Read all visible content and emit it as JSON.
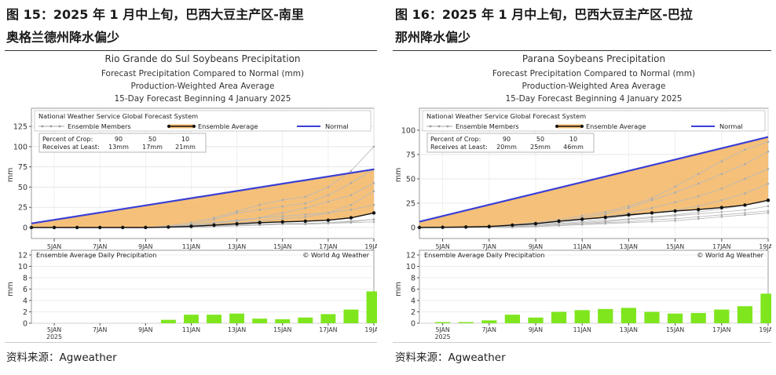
{
  "figures": [
    {
      "caption_line1": "图 15：2025 年 1 月中上旬，巴西大豆主产区-南里",
      "caption_line2": "奥格兰德州降水偏少",
      "source": "资料来源：Agweather"
    },
    {
      "caption_line1": "图 16：2025 年 1 月中上旬，巴西大豆主产区-巴拉",
      "caption_line2": "那州降水偏少",
      "source": "资料来源：Agweather"
    }
  ],
  "colors": {
    "normal": "#3a3fd6",
    "fill": "#f4b96a",
    "ensemble_average": "#111111",
    "ensemble_members": "#bbbbbb",
    "daily_bar": "#7fe61e",
    "panel_border": "#777777"
  },
  "chart_data": [
    {
      "type": "line",
      "title": "Rio Grande do Sul Soybeans Precipitation",
      "subtitle_lines": [
        "Forecast Precipitation Compared to Normal (mm)",
        "Production-Weighted Area Average",
        "15-Day Forecast Beginning 4 January 2025"
      ],
      "system_label": "National Weather Service Global Forecast System",
      "legend": {
        "members": "Ensemble Members",
        "average": "Ensemble Average",
        "normal": "Normal"
      },
      "crop_table": {
        "row1_label": "Percent of Crop:",
        "row2_label": "Receives at Least:",
        "percents": [
          "90",
          "50",
          "10"
        ],
        "amounts": [
          "13mm",
          "17mm",
          "21mm"
        ]
      },
      "ylabel": "mm",
      "top_yticks": [
        "0",
        "25",
        "50",
        "75",
        "100",
        "125"
      ],
      "top_ylim": [
        0,
        130
      ],
      "x_days": [
        4,
        5,
        6,
        7,
        8,
        9,
        10,
        11,
        12,
        13,
        14,
        15,
        16,
        17,
        18,
        19
      ],
      "x_tick_labels": [
        "5JAN",
        "7JAN",
        "9JAN",
        "11JAN",
        "13JAN",
        "15JAN",
        "17JAN",
        "19JAN"
      ],
      "x_tick_days": [
        5,
        7,
        9,
        11,
        13,
        15,
        17,
        19
      ],
      "x_year_label": "2025",
      "normal_range": [
        5,
        72
      ],
      "ensemble_average": [
        0,
        0,
        0,
        0,
        0,
        0,
        0.5,
        1.5,
        3,
        4.5,
        6,
        7,
        7.8,
        9,
        12,
        18
      ],
      "ensemble_members": [
        [
          0,
          0,
          0,
          0,
          0,
          0,
          0,
          1,
          2,
          3,
          4,
          5,
          5,
          6,
          7,
          10
        ],
        [
          0,
          0,
          0,
          0,
          0,
          0,
          1,
          3,
          6,
          9,
          12,
          14,
          16,
          18,
          22,
          28
        ],
        [
          0,
          0,
          0,
          0,
          0,
          0,
          0,
          1,
          2,
          3,
          3,
          4,
          4,
          5,
          6,
          7
        ],
        [
          0,
          0,
          0,
          0,
          0,
          0,
          2,
          6,
          12,
          20,
          28,
          34,
          38,
          50,
          70,
          100
        ],
        [
          0,
          0,
          0,
          0,
          0,
          0,
          1,
          4,
          10,
          18,
          22,
          26,
          30,
          40,
          55,
          72
        ],
        [
          0,
          0,
          0,
          0,
          0,
          0,
          0,
          2,
          5,
          8,
          12,
          18,
          24,
          32,
          40,
          55
        ],
        [
          0,
          0,
          0,
          0,
          0,
          0,
          0,
          1,
          3,
          5,
          8,
          11,
          13,
          18,
          28,
          45
        ],
        [
          0,
          0,
          0,
          0,
          0,
          0,
          0,
          0,
          1,
          2,
          3,
          4,
          5,
          6,
          8,
          10
        ]
      ],
      "bottom_title": "Ensemble Average Daily Precipitation",
      "credit": "© World Ag Weather",
      "bottom_yticks": [
        "0",
        "2",
        "4",
        "6",
        "8",
        "10",
        "12"
      ],
      "bottom_ylim": [
        0,
        12
      ],
      "daily_days": [
        10,
        11,
        12,
        13,
        14,
        15,
        16,
        17,
        18,
        19
      ],
      "daily_values": [
        0.6,
        1.5,
        1.5,
        1.7,
        0.8,
        0.7,
        1.0,
        1.6,
        2.4,
        5.6
      ]
    },
    {
      "type": "line",
      "title": "Parana Soybeans Precipitation",
      "subtitle_lines": [
        "Forecast Precipitation Compared to Normal (mm)",
        "Production-Weighted Area Average",
        "15-Day Forecast Beginning 4 January 2025"
      ],
      "system_label": "National Weather Service Global Forecast System",
      "legend": {
        "members": "Ensemble Members",
        "average": "Ensemble Average",
        "normal": "Normal"
      },
      "crop_table": {
        "row1_label": "Percent of Crop:",
        "row2_label": "Receives at Least:",
        "percents": [
          "90",
          "50",
          "10"
        ],
        "amounts": [
          "20mm",
          "25mm",
          "46mm"
        ]
      },
      "ylabel": "mm",
      "top_yticks": [
        "0",
        "25",
        "50",
        "75",
        "100"
      ],
      "top_ylim": [
        0,
        108
      ],
      "x_days": [
        4,
        5,
        6,
        7,
        8,
        9,
        10,
        11,
        12,
        13,
        14,
        15,
        16,
        17,
        18,
        19
      ],
      "x_tick_labels": [
        "5JAN",
        "7JAN",
        "9JAN",
        "11JAN",
        "13JAN",
        "15JAN",
        "17JAN",
        "19JAN"
      ],
      "x_tick_days": [
        5,
        7,
        9,
        11,
        13,
        15,
        17,
        19
      ],
      "x_year_label": "2025",
      "normal_range": [
        6,
        93
      ],
      "ensemble_average": [
        0,
        0.2,
        0.5,
        1,
        2.5,
        4,
        6.5,
        8.5,
        10.5,
        13,
        15,
        17,
        18.5,
        20.5,
        23,
        28
      ],
      "ensemble_members": [
        [
          0,
          0,
          0,
          1,
          3,
          5,
          8,
          12,
          16,
          22,
          30,
          42,
          55,
          68,
          80,
          88
        ],
        [
          0,
          0,
          0,
          1,
          2,
          4,
          6,
          10,
          14,
          20,
          28,
          36,
          45,
          55,
          65,
          78
        ],
        [
          0,
          0,
          0,
          1,
          2,
          3,
          5,
          8,
          11,
          15,
          20,
          26,
          32,
          40,
          50,
          60
        ],
        [
          0,
          0,
          0,
          0,
          1,
          2,
          4,
          6,
          9,
          12,
          15,
          18,
          22,
          28,
          35,
          45
        ],
        [
          0,
          0,
          0,
          0,
          1,
          2,
          3,
          5,
          7,
          9,
          11,
          13,
          16,
          19,
          23,
          28
        ],
        [
          0,
          0,
          0,
          0,
          1,
          2,
          3,
          4,
          6,
          8,
          10,
          12,
          14,
          16,
          18,
          22
        ],
        [
          0,
          0,
          0,
          0,
          1,
          1,
          2,
          3,
          5,
          6,
          8,
          9,
          11,
          13,
          15,
          17
        ],
        [
          0,
          0,
          0,
          0,
          0,
          1,
          2,
          3,
          4,
          5,
          6,
          7,
          9,
          11,
          13,
          15
        ]
      ],
      "bottom_title": "Ensemble Average Daily Precipitation",
      "credit": "© World Ag Weather",
      "bottom_yticks": [
        "0",
        "2",
        "4",
        "6",
        "8",
        "10",
        "12"
      ],
      "bottom_ylim": [
        0,
        12
      ],
      "daily_days": [
        5,
        6,
        7,
        8,
        9,
        10,
        11,
        12,
        13,
        14,
        15,
        16,
        17,
        18,
        19
      ],
      "daily_values": [
        0.2,
        0.2,
        0.5,
        1.5,
        1.0,
        2.0,
        2.3,
        2.5,
        2.7,
        2.0,
        1.7,
        1.8,
        2.4,
        3.0,
        5.2
      ]
    }
  ]
}
